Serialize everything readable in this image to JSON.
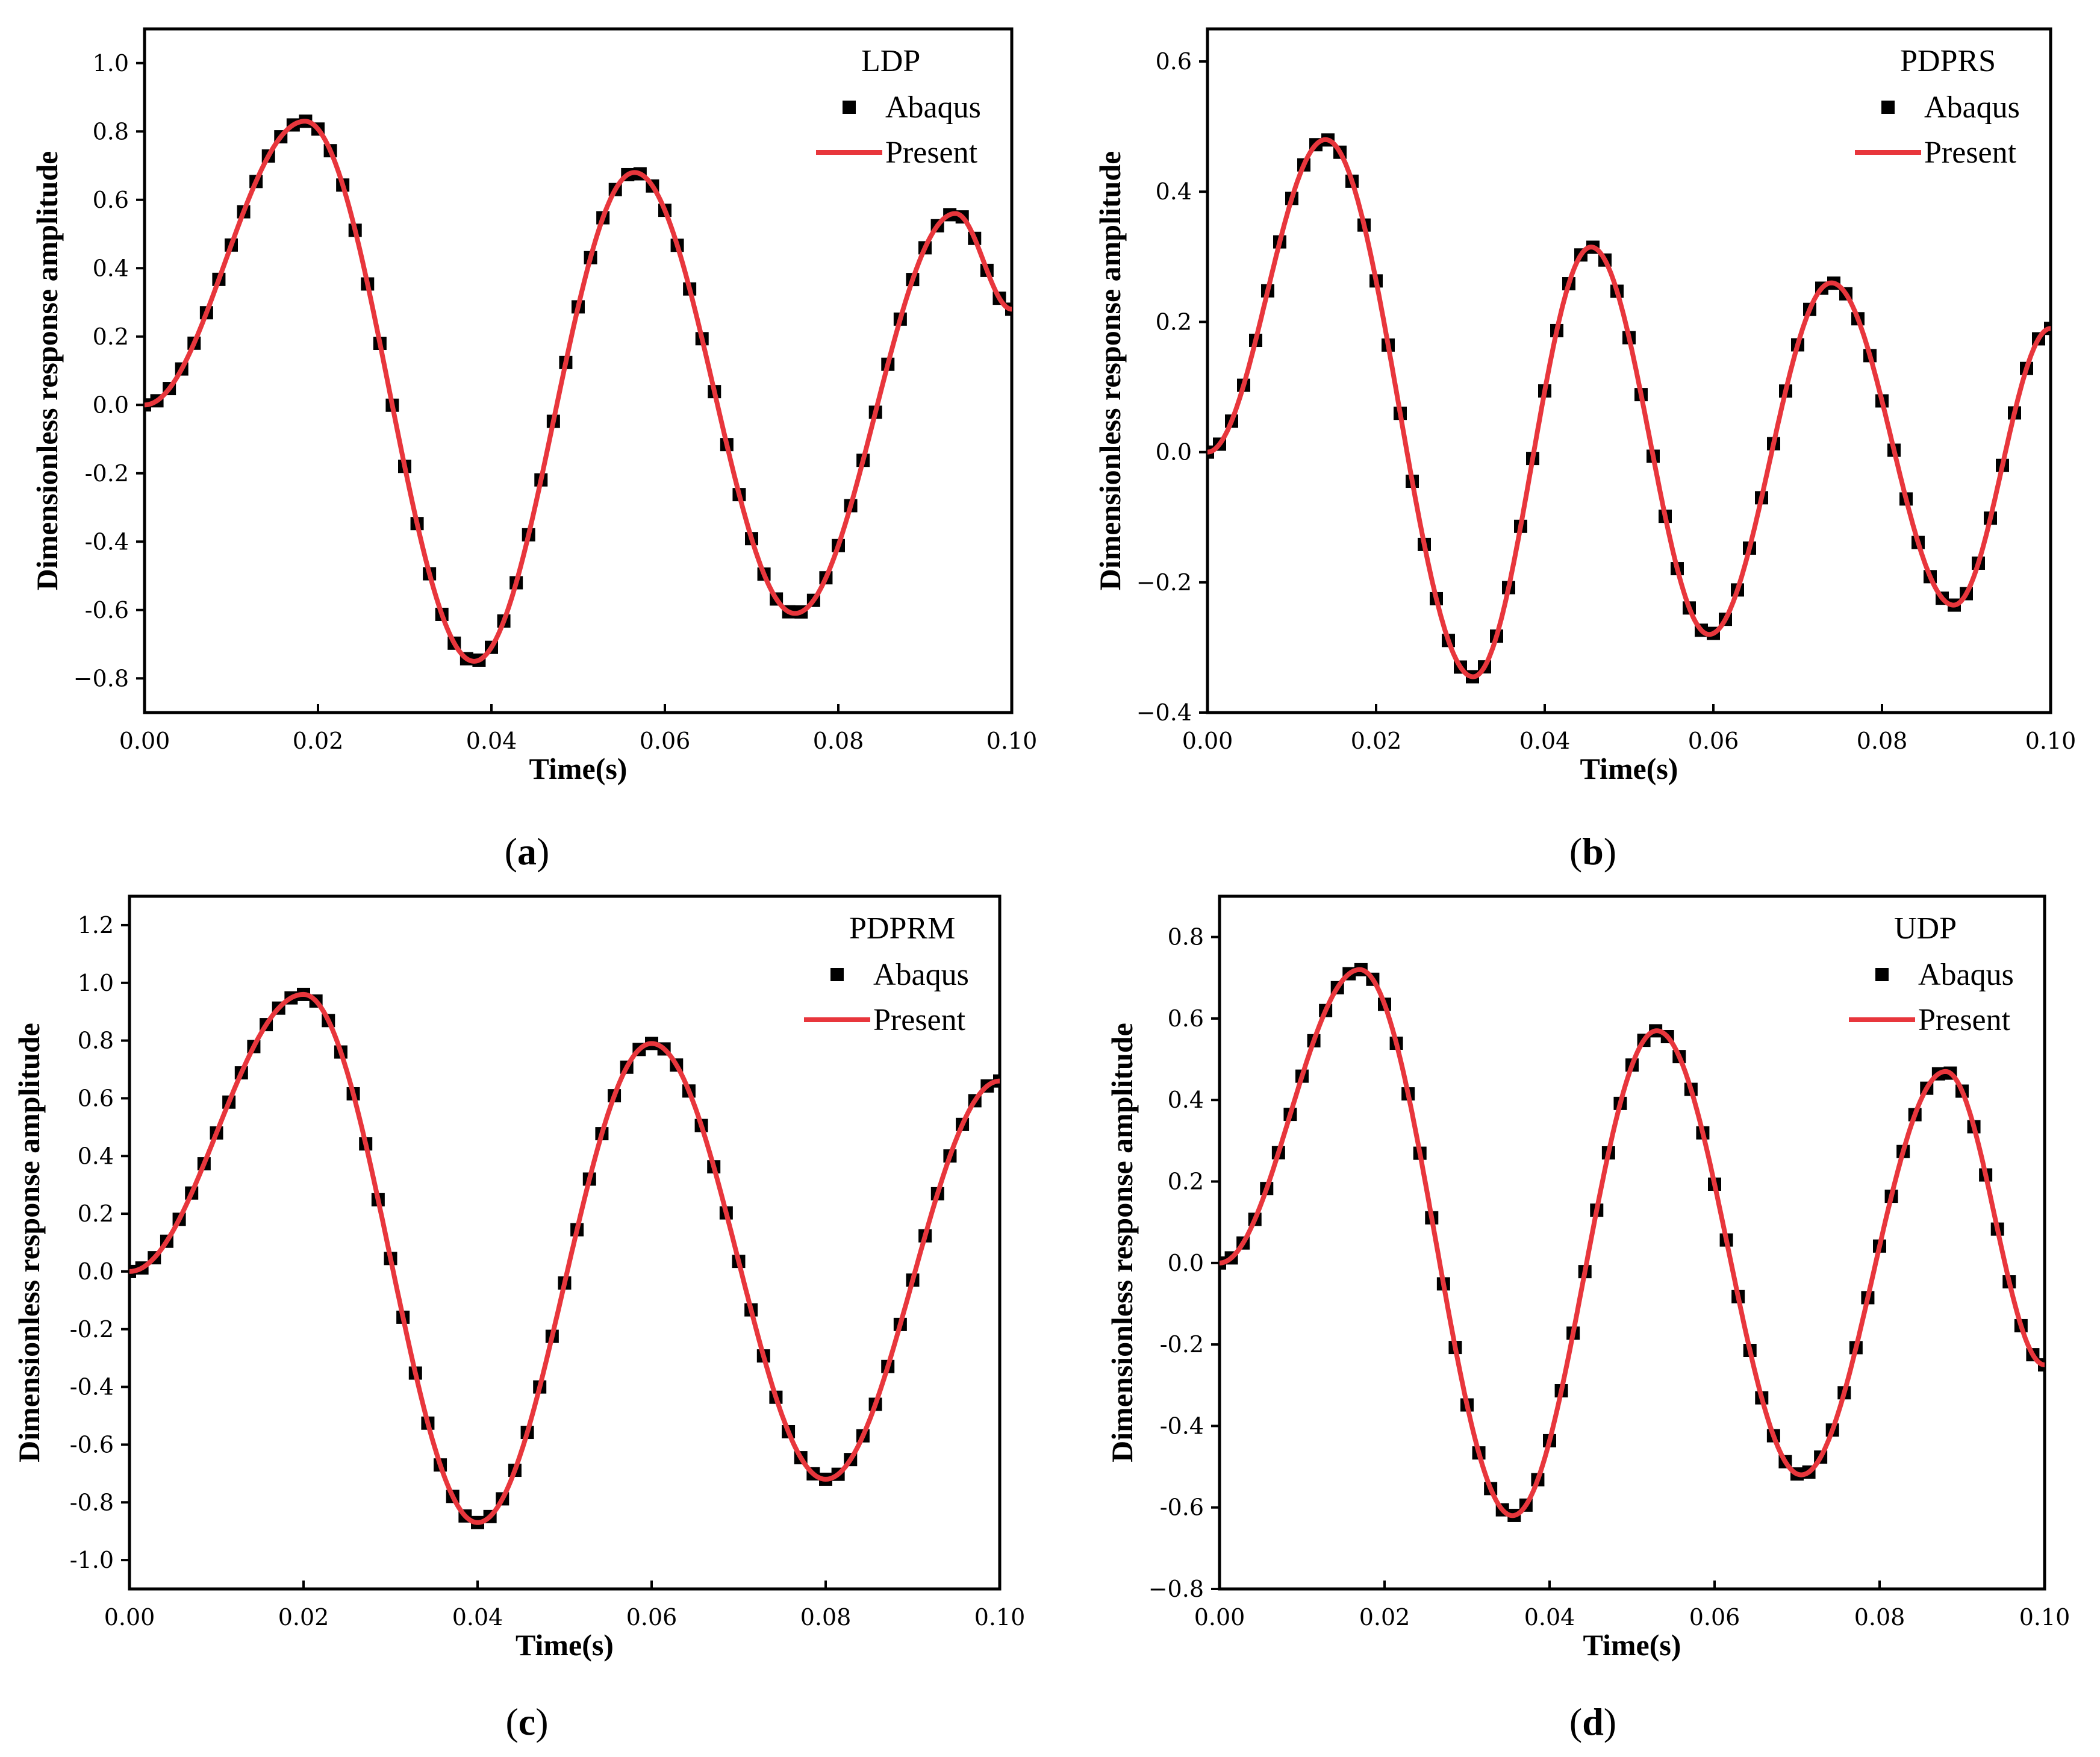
{
  "colors": {
    "present": "#e8363c",
    "abaqus": "#000000",
    "axis": "#000000"
  },
  "chart_data": [
    {
      "type": "line",
      "panel": "a",
      "caption_letter": "a",
      "legend_title": "LDP",
      "xlabel": "Time(s)",
      "ylabel": "Dimensionless response amplitude",
      "xlim": [
        0,
        0.1
      ],
      "ylim": [
        -0.9,
        1.1
      ],
      "xticks": [
        0,
        0.02,
        0.04,
        0.06,
        0.08,
        0.1
      ],
      "xtick_labels": [
        "0.00",
        "0.02",
        "0.04",
        "0.06",
        "0.08",
        "0.10"
      ],
      "yticks": [
        -0.8,
        -0.6,
        -0.4,
        -0.2,
        0,
        0.2,
        0.4,
        0.6,
        0.8,
        1.0
      ],
      "ytick_labels": [
        "−0.8",
        "-0.6",
        "-0.4",
        "-0.2",
        "0.0",
        "0.2",
        "0.4",
        "0.6",
        "0.8",
        "1.0"
      ],
      "legend_location": "top-right",
      "series": [
        {
          "name": "Abaqus",
          "style": "square-markers",
          "x": [
            0,
            0.0185,
            0.038,
            0.0565,
            0.075,
            0.0935,
            0.1
          ],
          "y": [
            0,
            0.83,
            -0.75,
            0.68,
            -0.61,
            0.56,
            0.28
          ]
        },
        {
          "name": "Present",
          "style": "line",
          "x": [
            0,
            0.0185,
            0.038,
            0.0565,
            0.075,
            0.0935,
            0.1
          ],
          "y": [
            0,
            0.83,
            -0.75,
            0.68,
            -0.61,
            0.56,
            0.28
          ]
        }
      ]
    },
    {
      "type": "line",
      "panel": "b",
      "caption_letter": "b",
      "legend_title": "PDPRS",
      "xlabel": "Time(s)",
      "ylabel": "Dimensionless response amplitude",
      "xlim": [
        0,
        0.1
      ],
      "ylim": [
        -0.4,
        0.65
      ],
      "xticks": [
        0,
        0.02,
        0.04,
        0.06,
        0.08,
        0.1
      ],
      "xtick_labels": [
        "0.00",
        "0.02",
        "0.04",
        "0.06",
        "0.08",
        "0.10"
      ],
      "yticks": [
        -0.4,
        -0.2,
        0,
        0.2,
        0.4,
        0.6
      ],
      "ytick_labels": [
        "−0.4",
        "−0.2",
        "0.0",
        "0.2",
        "0.4",
        "0.6"
      ],
      "legend_location": "top-right",
      "series": [
        {
          "name": "Abaqus",
          "style": "square-markers",
          "x": [
            0,
            0.014,
            0.0315,
            0.0455,
            0.0595,
            0.074,
            0.0885,
            0.1
          ],
          "y": [
            0,
            0.48,
            -0.345,
            0.315,
            -0.28,
            0.26,
            -0.235,
            0.19
          ]
        },
        {
          "name": "Present",
          "style": "line",
          "x": [
            0,
            0.014,
            0.0315,
            0.0455,
            0.0595,
            0.074,
            0.0885,
            0.1
          ],
          "y": [
            0,
            0.48,
            -0.345,
            0.315,
            -0.28,
            0.26,
            -0.235,
            0.19
          ]
        }
      ]
    },
    {
      "type": "line",
      "panel": "c",
      "caption_letter": "c",
      "legend_title": "PDPRM",
      "xlabel": "Time(s)",
      "ylabel": "Dimensionless response amplitude",
      "xlim": [
        0,
        0.1
      ],
      "ylim": [
        -1.1,
        1.3
      ],
      "xticks": [
        0,
        0.02,
        0.04,
        0.06,
        0.08,
        0.1
      ],
      "xtick_labels": [
        "0.00",
        "0.02",
        "0.04",
        "0.06",
        "0.08",
        "0.10"
      ],
      "yticks": [
        -1.0,
        -0.8,
        -0.6,
        -0.4,
        -0.2,
        0,
        0.2,
        0.4,
        0.6,
        0.8,
        1.0,
        1.2
      ],
      "ytick_labels": [
        "-1.0",
        "-0.8",
        "-0.6",
        "-0.4",
        "-0.2",
        "0.0",
        "0.2",
        "0.4",
        "0.6",
        "0.8",
        "1.0",
        "1.2"
      ],
      "legend_location": "top-right",
      "series": [
        {
          "name": "Abaqus",
          "style": "square-markers",
          "x": [
            0,
            0.02,
            0.04,
            0.06,
            0.08,
            0.1
          ],
          "y": [
            0,
            0.96,
            -0.87,
            0.79,
            -0.72,
            0.66
          ]
        },
        {
          "name": "Present",
          "style": "line",
          "x": [
            0,
            0.02,
            0.04,
            0.06,
            0.08,
            0.1
          ],
          "y": [
            0,
            0.96,
            -0.87,
            0.79,
            -0.72,
            0.66
          ]
        }
      ]
    },
    {
      "type": "line",
      "panel": "d",
      "caption_letter": "d",
      "legend_title": "UDP",
      "xlabel": "Time(s)",
      "ylabel": "Dimensionless response amplitude",
      "xlim": [
        0,
        0.1
      ],
      "ylim": [
        -0.8,
        0.9
      ],
      "xticks": [
        0,
        0.02,
        0.04,
        0.06,
        0.08,
        0.1
      ],
      "xtick_labels": [
        "0.00",
        "0.02",
        "0.04",
        "0.06",
        "0.08",
        "0.10"
      ],
      "yticks": [
        -0.8,
        -0.6,
        -0.4,
        -0.2,
        0,
        0.2,
        0.4,
        0.6,
        0.8
      ],
      "ytick_labels": [
        "−0.8",
        "-0.6",
        "-0.4",
        "-0.2",
        "0.0",
        "0.2",
        "0.4",
        "0.6",
        "0.8"
      ],
      "legend_location": "top-right",
      "series": [
        {
          "name": "Abaqus",
          "style": "square-markers",
          "x": [
            0,
            0.017,
            0.0355,
            0.053,
            0.0705,
            0.088,
            0.1
          ],
          "y": [
            0,
            0.72,
            -0.62,
            0.57,
            -0.52,
            0.47,
            -0.25
          ]
        },
        {
          "name": "Present",
          "style": "line",
          "x": [
            0,
            0.017,
            0.0355,
            0.053,
            0.0705,
            0.088,
            0.1
          ],
          "y": [
            0,
            0.72,
            -0.62,
            0.57,
            -0.52,
            0.47,
            -0.25
          ]
        }
      ]
    }
  ]
}
